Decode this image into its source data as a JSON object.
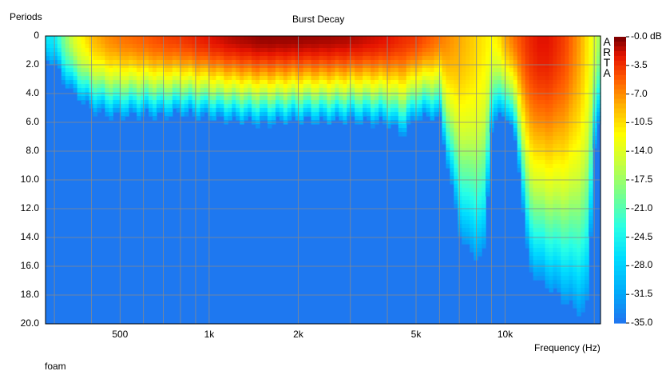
{
  "chart_data": {
    "type": "heatmap",
    "title": "Burst Decay",
    "ylabel": "Periods",
    "xlabel": "Frequency (Hz)",
    "footer_label": "foam",
    "watermark": "ARTA",
    "x_scale": "log",
    "xlim": [
      280,
      21000
    ],
    "ylim": [
      0,
      20
    ],
    "y_inverted": true,
    "grid": true,
    "x_tick_labels": [
      {
        "value": 500,
        "label": "500"
      },
      {
        "value": 1000,
        "label": "1k"
      },
      {
        "value": 2000,
        "label": "2k"
      },
      {
        "value": 5000,
        "label": "5k"
      },
      {
        "value": 10000,
        "label": "10k"
      }
    ],
    "x_gridlines": [
      300,
      400,
      500,
      600,
      700,
      800,
      900,
      1000,
      2000,
      3000,
      4000,
      5000,
      6000,
      7000,
      8000,
      9000,
      10000,
      20000
    ],
    "y_ticks": [
      "0",
      "2.0",
      "4.0",
      "6.0",
      "8.0",
      "10.0",
      "12.0",
      "14.0",
      "16.0",
      "18.0",
      "20.0"
    ],
    "colorbar": {
      "labels": [
        "-0.0 dB",
        "-3.5",
        "-7.0",
        "-10.5",
        "-14.0",
        "-17.5",
        "-21.0",
        "-24.5",
        "-28.0",
        "-31.5",
        "-35.0"
      ],
      "range_db": [
        -35,
        0
      ]
    },
    "decay_profile": {
      "description_units": "frequency Hz, periods until level drops to floor, peak initial level dB",
      "frequency": [
        300,
        320,
        350,
        400,
        450,
        500,
        600,
        700,
        800,
        1000,
        1200,
        1500,
        2000,
        2500,
        3000,
        4000,
        4500,
        5000,
        6000,
        7000,
        7500,
        8000,
        8500,
        9000,
        9500,
        10000,
        11000,
        12000,
        13000,
        14000,
        15000,
        16000,
        17000,
        18000,
        19000,
        20000,
        21000
      ],
      "decay_end_periods": [
        2.0,
        3.2,
        4.2,
        5.2,
        5.6,
        5.7,
        5.6,
        5.7,
        5.5,
        5.8,
        6.0,
        6.2,
        6.0,
        6.1,
        6.0,
        6.2,
        7.0,
        5.8,
        5.8,
        14.0,
        15.5,
        16.0,
        15.8,
        6.5,
        6.0,
        5.5,
        8.0,
        16.5,
        17.5,
        18.0,
        18.5,
        19.0,
        19.5,
        20.0,
        19.5,
        8.0,
        6.0
      ],
      "peak_db": [
        -26,
        -20,
        -14,
        -9,
        -7,
        -6,
        -5,
        -4,
        -3.5,
        -2,
        -1,
        -0.3,
        -0.4,
        -0.6,
        -0.9,
        -2,
        -3,
        -3.5,
        -6,
        -8,
        -9,
        -10,
        -11,
        -12,
        -11,
        -8,
        -5,
        -3,
        -2,
        -2,
        -3,
        -4,
        -6,
        -8,
        -11,
        -14,
        -18
      ]
    }
  }
}
